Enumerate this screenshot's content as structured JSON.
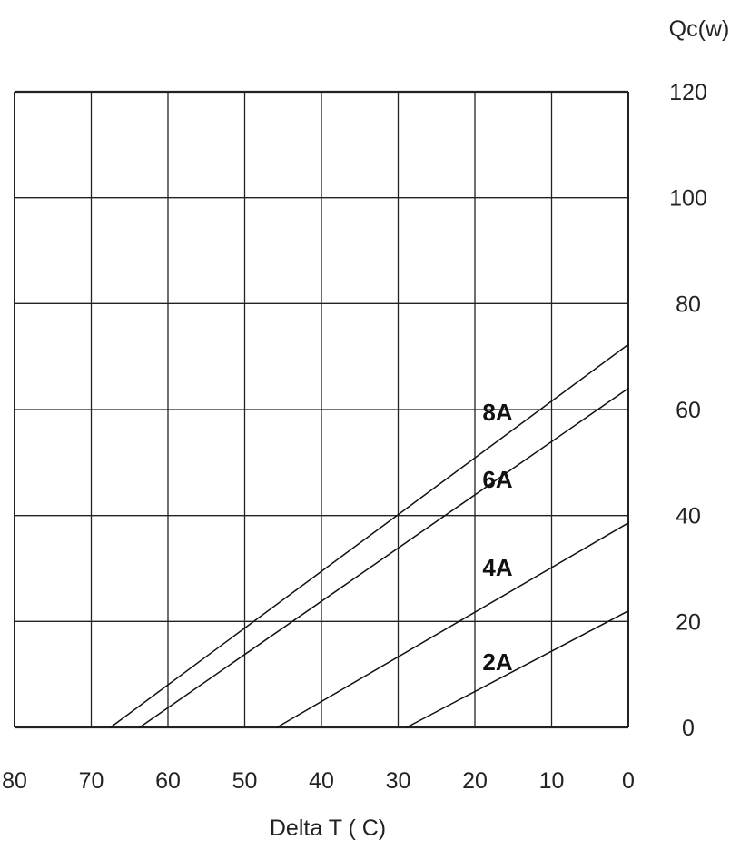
{
  "chart_data": {
    "type": "line",
    "title": "",
    "xlabel": "Delta T ( C)",
    "ylabel": "Qc(w)",
    "xlim": [
      80,
      0
    ],
    "ylim": [
      0,
      120
    ],
    "x_ticks": [
      "80",
      "70",
      "60",
      "50",
      "40",
      "30",
      "20",
      "10",
      "0"
    ],
    "y_ticks": [
      "0",
      "20",
      "40",
      "60",
      "80",
      "100",
      "120"
    ],
    "grid": true,
    "legend": "none",
    "series": [
      {
        "name": "8A",
        "label": "8A",
        "points": [
          [
            67.5,
            0
          ],
          [
            0,
            72.3
          ]
        ],
        "color": "#111111"
      },
      {
        "name": "6A",
        "label": "6A",
        "points": [
          [
            63.7,
            0
          ],
          [
            0,
            64
          ]
        ],
        "color": "#111111"
      },
      {
        "name": "4A",
        "label": "4A",
        "points": [
          [
            45.8,
            0
          ],
          [
            0,
            38.6
          ]
        ],
        "color": "#111111"
      },
      {
        "name": "2A",
        "label": "2A",
        "points": [
          [
            28.9,
            0
          ],
          [
            0,
            22
          ]
        ],
        "color": "#111111"
      }
    ]
  }
}
